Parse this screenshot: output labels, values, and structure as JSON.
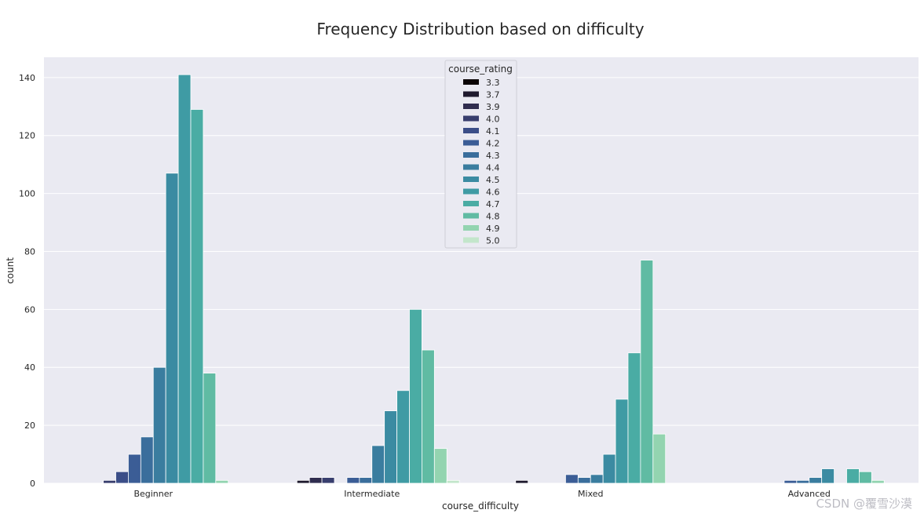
{
  "chart_data": {
    "type": "bar",
    "title": "Frequency Distribution based on difficulty",
    "xlabel": "course_difficulty",
    "ylabel": "count",
    "ylim": [
      0,
      147
    ],
    "yticks": [
      0,
      20,
      40,
      60,
      80,
      100,
      120,
      140
    ],
    "ytick_labels": [
      "0",
      "20",
      "40",
      "60",
      "80",
      "100",
      "120",
      "140"
    ],
    "grid": true,
    "legend_title": "course_rating",
    "legend_position": "top-center",
    "categories": [
      "Beginner",
      "Intermediate",
      "Mixed",
      "Advanced"
    ],
    "series": [
      {
        "name": "3.3",
        "color": "#0b0405",
        "values": [
          0,
          0,
          0,
          0
        ]
      },
      {
        "name": "3.7",
        "color": "#1f1a2e",
        "values": [
          0,
          1,
          1,
          0
        ]
      },
      {
        "name": "3.9",
        "color": "#302d4f",
        "values": [
          0,
          2,
          0,
          0
        ]
      },
      {
        "name": "4.0",
        "color": "#383e6e",
        "values": [
          1,
          2,
          0,
          0
        ]
      },
      {
        "name": "4.1",
        "color": "#3b4e88",
        "values": [
          4,
          0,
          0,
          0
        ]
      },
      {
        "name": "4.2",
        "color": "#3b5d96",
        "values": [
          10,
          2,
          3,
          1
        ]
      },
      {
        "name": "4.3",
        "color": "#3a6e9c",
        "values": [
          16,
          2,
          2,
          1
        ]
      },
      {
        "name": "4.4",
        "color": "#3a7d9f",
        "values": [
          40,
          13,
          3,
          2
        ]
      },
      {
        "name": "4.5",
        "color": "#3b8ba2",
        "values": [
          107,
          25,
          10,
          5
        ]
      },
      {
        "name": "4.6",
        "color": "#3f9ba4",
        "values": [
          141,
          32,
          29,
          0
        ]
      },
      {
        "name": "4.7",
        "color": "#4aaca4",
        "values": [
          129,
          60,
          45,
          5
        ]
      },
      {
        "name": "4.8",
        "color": "#60bba3",
        "values": [
          38,
          46,
          77,
          4
        ]
      },
      {
        "name": "4.9",
        "color": "#93d4b0",
        "values": [
          1,
          12,
          17,
          1
        ]
      },
      {
        "name": "5.0",
        "color": "#c3e6cb",
        "values": [
          0,
          1,
          0,
          0
        ]
      }
    ]
  },
  "watermark": "CSDN @覆雪沙漠"
}
